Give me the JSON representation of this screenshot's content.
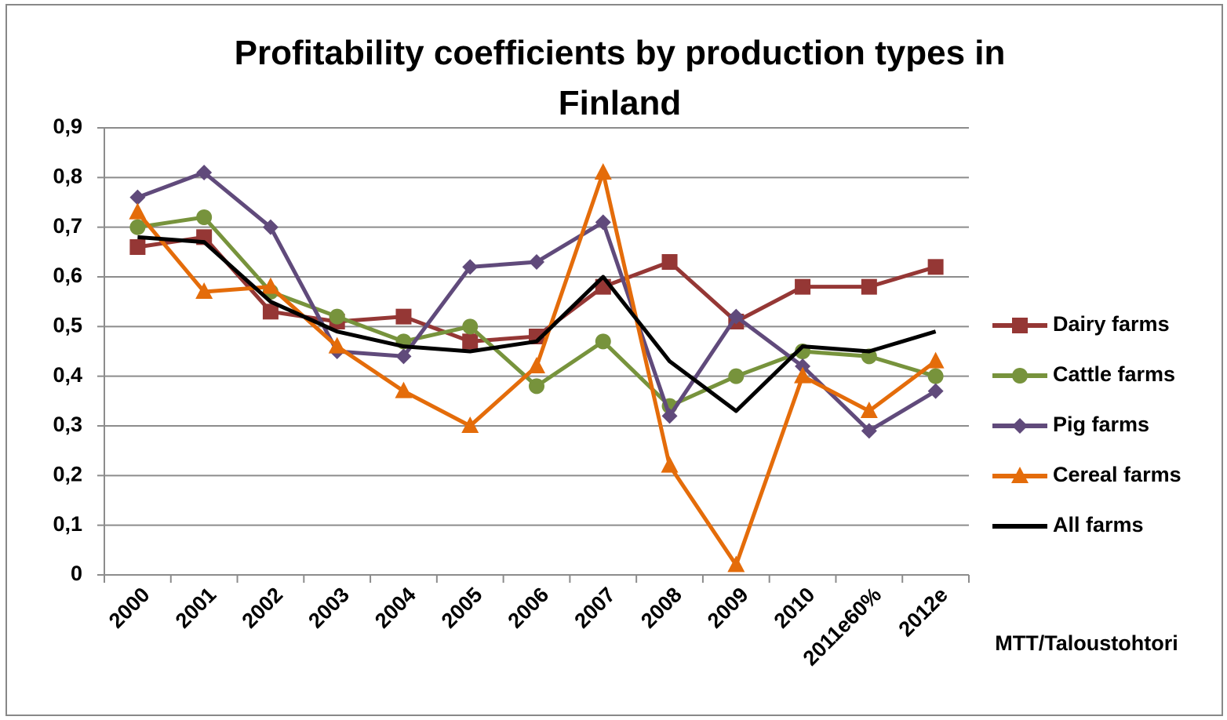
{
  "chart_data": {
    "type": "line",
    "title": "Profitability coefficients by production types in Finland",
    "annotation": "MTT/Taloustohtori",
    "categories": [
      "2000",
      "2001",
      "2002",
      "2003",
      "2004",
      "2005",
      "2006",
      "2007",
      "2008",
      "2009",
      "2010",
      "2011e60%",
      "2012e"
    ],
    "series": [
      {
        "name": "Dairy farms",
        "color": "#953735",
        "marker": "square",
        "values": [
          0.66,
          0.68,
          0.53,
          0.51,
          0.52,
          0.47,
          0.48,
          0.58,
          0.63,
          0.51,
          0.58,
          0.58,
          0.62
        ]
      },
      {
        "name": "Cattle farms",
        "color": "#77933c",
        "marker": "circle",
        "values": [
          0.7,
          0.72,
          0.57,
          0.52,
          0.47,
          0.5,
          0.38,
          0.47,
          0.34,
          0.4,
          0.45,
          0.44,
          0.4
        ]
      },
      {
        "name": "Pig farms",
        "color": "#604a7b",
        "marker": "diamond",
        "values": [
          0.76,
          0.81,
          0.7,
          0.45,
          0.44,
          0.62,
          0.63,
          0.71,
          0.32,
          0.52,
          0.42,
          0.29,
          0.37
        ]
      },
      {
        "name": "Cereal farms",
        "color": "#e46c0a",
        "marker": "triangle",
        "values": [
          0.73,
          0.57,
          0.58,
          0.46,
          0.37,
          0.3,
          0.42,
          0.81,
          0.22,
          0.02,
          0.4,
          0.33,
          0.43
        ]
      },
      {
        "name": "All farms",
        "color": "#000000",
        "marker": "none",
        "values": [
          0.68,
          0.67,
          0.55,
          0.49,
          0.46,
          0.45,
          0.47,
          0.6,
          0.43,
          0.33,
          0.46,
          0.45,
          0.49
        ]
      }
    ],
    "ylim": [
      0,
      0.9
    ],
    "yticks": [
      0,
      {
        "value": 0.1,
        "label": "0,1"
      },
      {
        "value": 0.2,
        "label": "0,2"
      },
      {
        "value": 0.3,
        "label": "0,3"
      },
      {
        "value": 0.4,
        "label": "0,4"
      },
      {
        "value": 0.5,
        "label": "0,5"
      },
      {
        "value": 0.6,
        "label": "0,6"
      },
      {
        "value": 0.7,
        "label": "0,7"
      },
      {
        "value": 0.8,
        "label": "0,8"
      },
      {
        "value": 0.9,
        "label": "0,9"
      }
    ],
    "grid": true,
    "legend": "right"
  }
}
